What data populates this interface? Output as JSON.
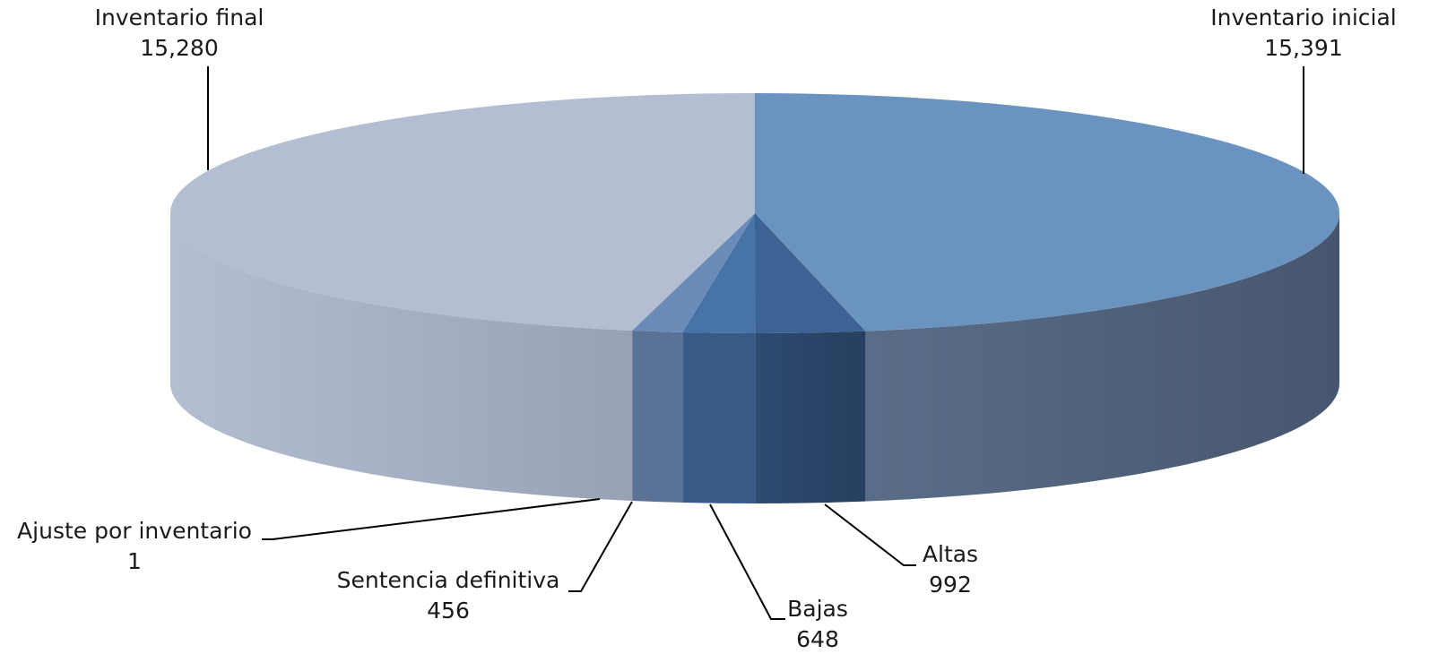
{
  "chart_data": {
    "type": "pie",
    "title": "",
    "style": "3d",
    "legend": "none",
    "slices": [
      {
        "label": "Inventario inicial",
        "value": 15391,
        "display": "15,391",
        "color": "#6b93c0",
        "side_color": "#4e6078"
      },
      {
        "label": "Altas",
        "value": 992,
        "display": "992",
        "color": "#3c6394",
        "side_color": "#2c4466"
      },
      {
        "label": "Bajas",
        "value": 648,
        "display": "648",
        "color": "#4773a6",
        "side_color": "#375a86"
      },
      {
        "label": "Sentencia definitiva",
        "value": 456,
        "display": "456",
        "color": "#6a8ab8",
        "side_color": "#5a7295"
      },
      {
        "label": "Ajuste por inventario",
        "value": 1,
        "display": "1",
        "color": "#5f80ad",
        "side_color": "#5a7295"
      },
      {
        "label": "Inventario final",
        "value": 15280,
        "display": "15,280",
        "color": "#b3bed3",
        "side_color": "#a3adbf"
      }
    ]
  }
}
